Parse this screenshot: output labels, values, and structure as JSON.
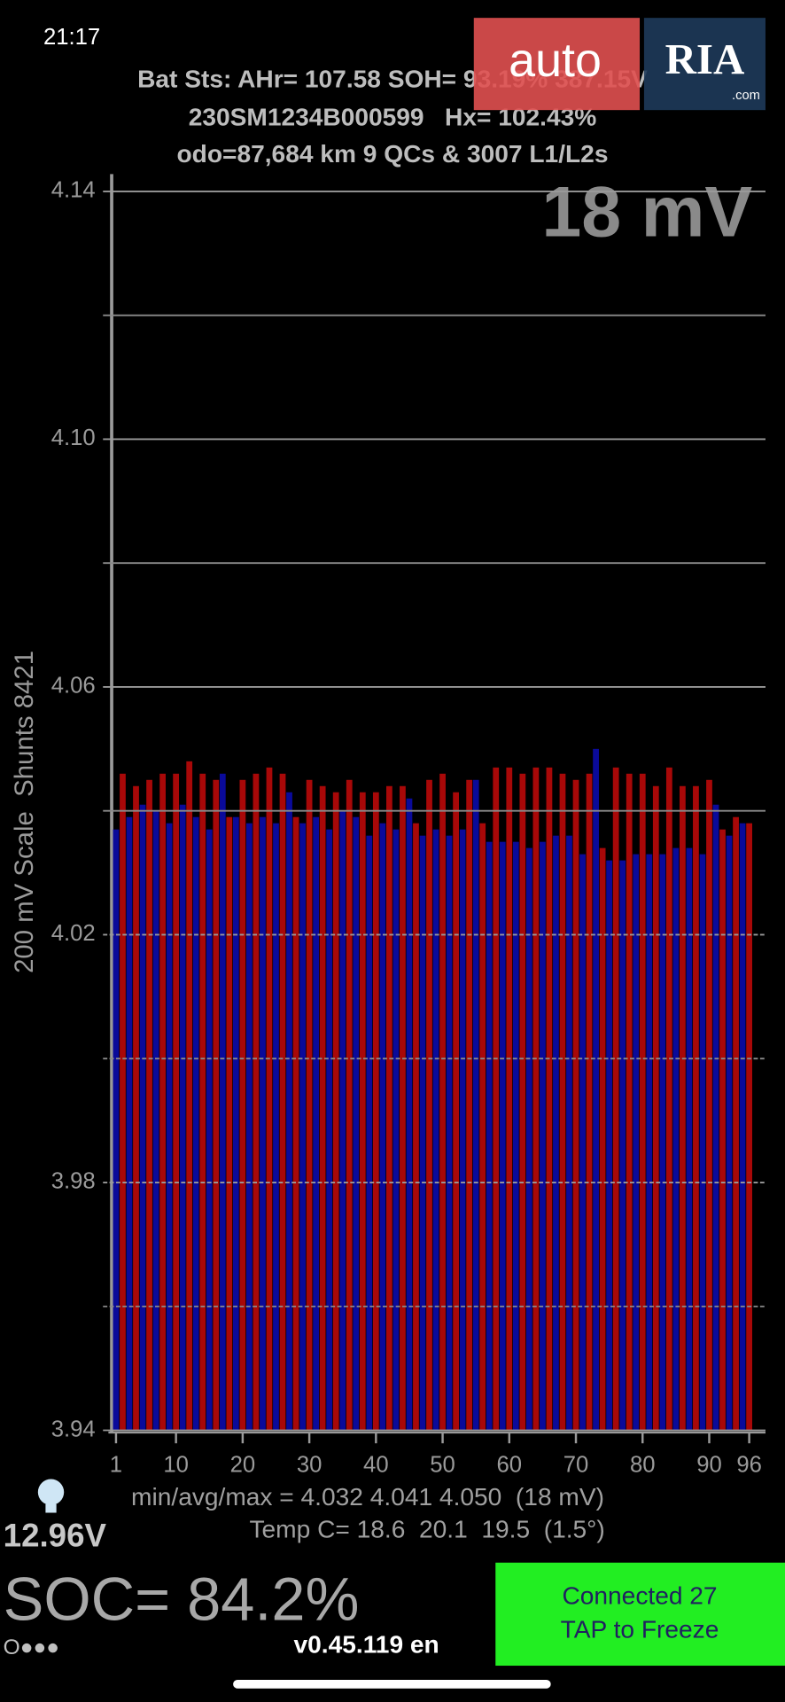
{
  "status_bar": {
    "time": "21:17"
  },
  "header": {
    "lines": [
      "Bat Sts: AHr= 107.58 SOH= 93.19% 387.15V",
      "230SM1234B000599   Hx= 102.43%",
      "odo=87,684 km 9 QCs & 3007 L1/L2s"
    ]
  },
  "watermark": {
    "left": "auto",
    "right": "RIA",
    "suffix": ".com"
  },
  "chart_data": {
    "type": "bar",
    "annotation": "18 mV",
    "y_label": "200 mV Scale  Shunts 8421",
    "categories_count_ticks": true,
    "values": [
      4.037,
      4.046,
      4.039,
      4.044,
      4.041,
      4.045,
      4.04,
      4.046,
      4.038,
      4.046,
      4.041,
      4.048,
      4.039,
      4.046,
      4.037,
      4.045,
      4.046,
      4.039,
      4.039,
      4.045,
      4.038,
      4.046,
      4.039,
      4.047,
      4.038,
      4.046,
      4.043,
      4.039,
      4.038,
      4.045,
      4.039,
      4.044,
      4.037,
      4.043,
      4.04,
      4.045,
      4.039,
      4.043,
      4.036,
      4.043,
      4.038,
      4.044,
      4.037,
      4.044,
      4.042,
      4.038,
      4.036,
      4.045,
      4.037,
      4.046,
      4.036,
      4.043,
      4.037,
      4.045,
      4.045,
      4.038,
      4.035,
      4.047,
      4.035,
      4.047,
      4.035,
      4.046,
      4.034,
      4.047,
      4.035,
      4.047,
      4.036,
      4.046,
      4.036,
      4.045,
      4.033,
      4.046,
      4.05,
      4.034,
      4.032,
      4.047,
      4.032,
      4.046,
      4.033,
      4.046,
      4.033,
      4.044,
      4.033,
      4.047,
      4.034,
      4.044,
      4.034,
      4.044,
      4.033,
      4.045,
      4.041,
      4.037,
      4.036,
      4.039,
      4.038,
      4.038
    ],
    "colors": [
      "#0a0a9a",
      "#a80808"
    ],
    "xlim": [
      1,
      96
    ],
    "xticks": [
      1,
      10,
      20,
      30,
      40,
      50,
      60,
      70,
      80,
      90,
      96
    ],
    "ylim": [
      3.94,
      4.14
    ],
    "yticks": [
      4.14,
      {
        "value": 4.1,
        "label": "4.10"
      },
      4.06,
      4.02,
      3.98,
      3.94
    ],
    "minor_yticks": [
      4.12,
      4.08,
      4.04,
      4.0,
      3.96
    ],
    "grid": true,
    "stats": [
      "min/avg/max = 4.032 4.041 4.050  (18 mV)",
      "Temp C= 18.6  20.1  19.5  (1.5°)"
    ]
  },
  "footer": {
    "voltage": "12.96V",
    "soc": "SOC= 84.2%",
    "dots": "O●●●",
    "version": "v0.45.119 en"
  },
  "button": {
    "lines": [
      "Connected 27",
      "TAP to Freeze"
    ]
  }
}
